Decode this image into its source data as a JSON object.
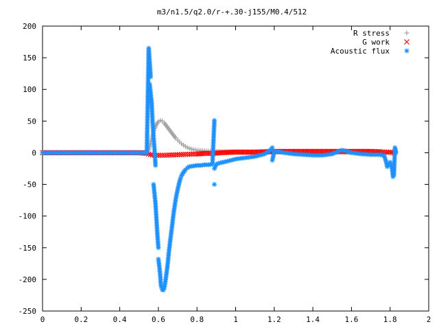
{
  "chart_data": {
    "type": "scatter",
    "title": "m3/n1.5/q2.0/r-+.30-j155/M0.4/512",
    "xlabel": "",
    "ylabel": "",
    "xlim": [
      0,
      2
    ],
    "ylim": [
      -250,
      200
    ],
    "x_ticks": [
      0,
      0.2,
      0.4,
      0.6,
      0.8,
      1,
      1.2,
      1.4,
      1.6,
      1.8,
      2
    ],
    "x_tick_labels": [
      "0",
      "0.2",
      "0.4",
      "0.6",
      "0.8",
      "1",
      "1.2",
      "1.4",
      "1.6",
      "1.8",
      "2"
    ],
    "y_ticks": [
      200,
      150,
      100,
      50,
      0,
      -50,
      -100,
      -150,
      -200,
      -250
    ],
    "y_tick_labels": [
      "200",
      "150",
      "100",
      "50",
      "0",
      "-50",
      "-100",
      "-150",
      "-200",
      "-250"
    ],
    "grid": false,
    "legend_position": "top-right",
    "series": [
      {
        "name": "R stress",
        "marker": "plus",
        "color": "#a0a0a0",
        "points": [
          [
            0.0,
            0
          ],
          [
            0.1,
            0
          ],
          [
            0.2,
            0
          ],
          [
            0.3,
            0
          ],
          [
            0.4,
            0
          ],
          [
            0.5,
            0
          ],
          [
            0.54,
            1
          ],
          [
            0.55,
            5
          ],
          [
            0.56,
            15
          ],
          [
            0.57,
            28
          ],
          [
            0.58,
            38
          ],
          [
            0.59,
            45
          ],
          [
            0.6,
            49
          ],
          [
            0.61,
            51
          ],
          [
            0.62,
            50
          ],
          [
            0.63,
            47
          ],
          [
            0.64,
            43
          ],
          [
            0.65,
            39
          ],
          [
            0.66,
            35
          ],
          [
            0.67,
            31
          ],
          [
            0.68,
            27
          ],
          [
            0.69,
            23
          ],
          [
            0.7,
            20
          ],
          [
            0.71,
            17
          ],
          [
            0.72,
            14
          ],
          [
            0.73,
            12
          ],
          [
            0.74,
            10
          ],
          [
            0.75,
            8
          ],
          [
            0.76,
            7
          ],
          [
            0.77,
            6
          ],
          [
            0.78,
            5
          ],
          [
            0.8,
            4
          ],
          [
            0.82,
            3.5
          ],
          [
            0.84,
            3
          ],
          [
            0.86,
            2.5
          ],
          [
            0.88,
            2.2
          ],
          [
            0.9,
            2
          ],
          [
            0.95,
            1.5
          ],
          [
            1.0,
            1.2
          ],
          [
            1.1,
            1
          ],
          [
            1.2,
            0.8
          ],
          [
            1.3,
            0.6
          ],
          [
            1.4,
            0.5
          ],
          [
            1.5,
            0.5
          ],
          [
            1.6,
            0.4
          ],
          [
            1.7,
            0.3
          ],
          [
            1.8,
            0.2
          ],
          [
            1.83,
            0
          ]
        ]
      },
      {
        "name": "G work",
        "marker": "cross",
        "color": "#ff0000",
        "points": [
          [
            0.0,
            0
          ],
          [
            0.1,
            0
          ],
          [
            0.2,
            0
          ],
          [
            0.3,
            0
          ],
          [
            0.4,
            0
          ],
          [
            0.5,
            0
          ],
          [
            0.54,
            -1
          ],
          [
            0.56,
            -3
          ],
          [
            0.58,
            -4
          ],
          [
            0.6,
            -4
          ],
          [
            0.62,
            -4
          ],
          [
            0.64,
            -4
          ],
          [
            0.66,
            -3.5
          ],
          [
            0.68,
            -3.5
          ],
          [
            0.7,
            -3
          ],
          [
            0.72,
            -3
          ],
          [
            0.74,
            -2.5
          ],
          [
            0.76,
            -2.5
          ],
          [
            0.78,
            -2
          ],
          [
            0.8,
            -2
          ],
          [
            0.84,
            -1
          ],
          [
            0.88,
            -1
          ],
          [
            0.92,
            0
          ],
          [
            0.96,
            0.5
          ],
          [
            1.0,
            1
          ],
          [
            1.05,
            1
          ],
          [
            1.1,
            1
          ],
          [
            1.15,
            1.5
          ],
          [
            1.2,
            2
          ],
          [
            1.25,
            2
          ],
          [
            1.3,
            2
          ],
          [
            1.35,
            2
          ],
          [
            1.4,
            2
          ],
          [
            1.45,
            2
          ],
          [
            1.5,
            2
          ],
          [
            1.55,
            2
          ],
          [
            1.6,
            2
          ],
          [
            1.65,
            2
          ],
          [
            1.7,
            2
          ],
          [
            1.75,
            1.5
          ],
          [
            1.78,
            1
          ],
          [
            1.8,
            1
          ],
          [
            1.82,
            0
          ]
        ]
      },
      {
        "name": "Acoustic flux",
        "marker": "star",
        "color": "#1e90ff",
        "points": [
          [
            0.0,
            0
          ],
          [
            0.1,
            0
          ],
          [
            0.2,
            0
          ],
          [
            0.3,
            0
          ],
          [
            0.4,
            0
          ],
          [
            0.5,
            0
          ],
          [
            0.54,
            0
          ],
          [
            0.55,
            165
          ],
          [
            0.56,
            120
          ],
          [
            0.555,
            108
          ],
          [
            0.565,
            80
          ],
          [
            0.57,
            48
          ],
          [
            0.575,
            25
          ],
          [
            0.58,
            5
          ],
          [
            0.585,
            -20
          ],
          [
            0.575,
            -50
          ],
          [
            0.585,
            -80
          ],
          [
            0.59,
            -105
          ],
          [
            0.595,
            -130
          ],
          [
            0.6,
            -150
          ],
          [
            0.6,
            -168
          ],
          [
            0.605,
            -180
          ],
          [
            0.61,
            -195
          ],
          [
            0.612,
            -205
          ],
          [
            0.615,
            -212
          ],
          [
            0.62,
            -216
          ],
          [
            0.625,
            -217
          ],
          [
            0.63,
            -214
          ],
          [
            0.635,
            -206
          ],
          [
            0.64,
            -195
          ],
          [
            0.645,
            -184
          ],
          [
            0.65,
            -170
          ],
          [
            0.655,
            -155
          ],
          [
            0.66,
            -142
          ],
          [
            0.665,
            -130
          ],
          [
            0.67,
            -118
          ],
          [
            0.675,
            -105
          ],
          [
            0.68,
            -93
          ],
          [
            0.685,
            -83
          ],
          [
            0.69,
            -73
          ],
          [
            0.695,
            -65
          ],
          [
            0.7,
            -58
          ],
          [
            0.705,
            -51
          ],
          [
            0.71,
            -45
          ],
          [
            0.715,
            -40
          ],
          [
            0.72,
            -36
          ],
          [
            0.73,
            -31
          ],
          [
            0.74,
            -27
          ],
          [
            0.75,
            -24
          ],
          [
            0.76,
            -22
          ],
          [
            0.78,
            -21
          ],
          [
            0.8,
            -20
          ],
          [
            0.82,
            -20
          ],
          [
            0.84,
            -19
          ],
          [
            0.86,
            -19
          ],
          [
            0.88,
            -18
          ],
          [
            0.89,
            51
          ],
          [
            0.89,
            -50
          ],
          [
            0.89,
            -25
          ],
          [
            0.9,
            -18
          ],
          [
            0.92,
            -16
          ],
          [
            0.95,
            -14
          ],
          [
            1.0,
            -10
          ],
          [
            1.05,
            -8
          ],
          [
            1.1,
            -6
          ],
          [
            1.15,
            -2
          ],
          [
            1.18,
            4
          ],
          [
            1.19,
            8
          ],
          [
            1.19,
            -12
          ],
          [
            1.2,
            2
          ],
          [
            1.22,
            2
          ],
          [
            1.25,
            0
          ],
          [
            1.3,
            -2
          ],
          [
            1.35,
            -3
          ],
          [
            1.4,
            -4
          ],
          [
            1.45,
            -4
          ],
          [
            1.5,
            -2
          ],
          [
            1.53,
            2
          ],
          [
            1.55,
            4
          ],
          [
            1.57,
            3
          ],
          [
            1.6,
            0
          ],
          [
            1.65,
            -2
          ],
          [
            1.7,
            -3
          ],
          [
            1.75,
            -3
          ],
          [
            1.77,
            -5
          ],
          [
            1.78,
            -15
          ],
          [
            1.785,
            -22
          ],
          [
            1.79,
            -20
          ],
          [
            1.8,
            -15
          ],
          [
            1.81,
            -25
          ],
          [
            1.815,
            -38
          ],
          [
            1.82,
            -35
          ],
          [
            1.825,
            8
          ],
          [
            1.83,
            2
          ],
          [
            1.83,
            0
          ]
        ]
      }
    ]
  }
}
